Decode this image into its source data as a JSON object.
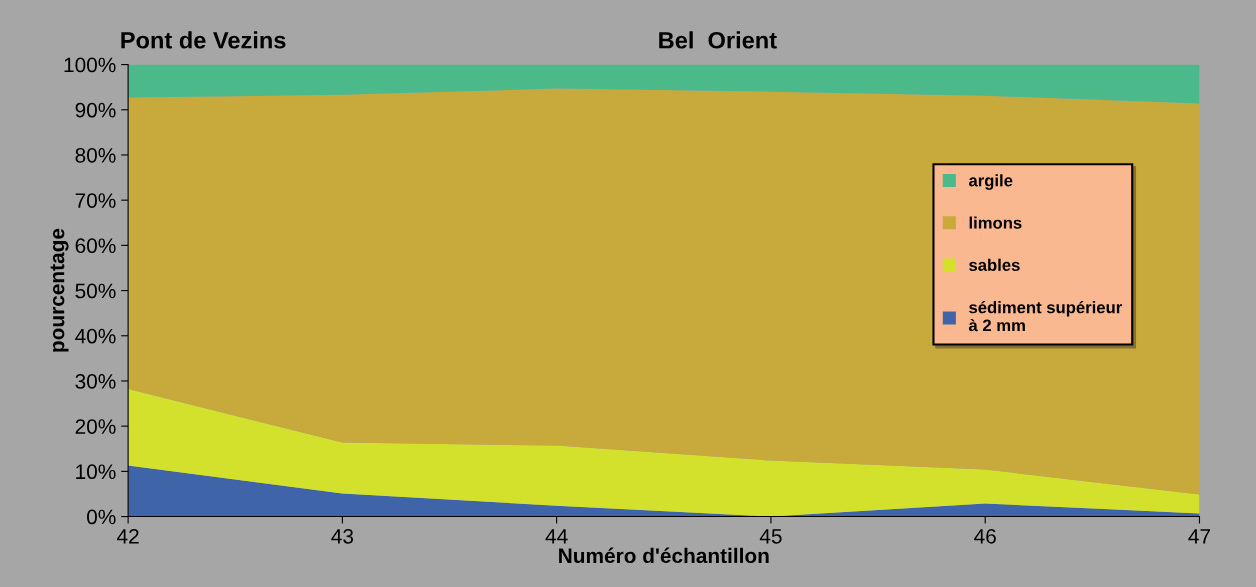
{
  "chart_data": {
    "type": "area",
    "stacked": true,
    "xlabel": "Numéro d'échantillon",
    "ylabel": "pourcentage",
    "annotations": [
      "Pont de Vezins",
      "Bel  Orient"
    ],
    "x": [
      42,
      43,
      44,
      45,
      46,
      47
    ],
    "series": [
      {
        "name": "sédiment supérieur\nà 2 mm",
        "color": "#3f64a8",
        "values": [
          11.3,
          5.1,
          2.4,
          0,
          2.9,
          0.7
        ]
      },
      {
        "name": "sables",
        "color": "#d3e12c",
        "values": [
          16.9,
          11.3,
          13.3,
          12.4,
          7.5,
          4.2
        ]
      },
      {
        "name": "limons",
        "color": "#c8aa3c",
        "values": [
          64.5,
          76.9,
          79.0,
          81.6,
          82.7,
          86.5
        ]
      },
      {
        "name": "argile",
        "color": "#4cb98a",
        "values": [
          7.3,
          6.7,
          5.3,
          6.0,
          6.9,
          8.6
        ]
      }
    ],
    "xlim": [
      42,
      47
    ],
    "xticks": [
      42,
      43,
      44,
      45,
      46,
      47
    ],
    "ylim": [
      0,
      100
    ],
    "yticks": [
      {
        "value": 0,
        "label": "0%"
      },
      {
        "value": 10,
        "label": "10%"
      },
      {
        "value": 20,
        "label": "20%"
      },
      {
        "value": 30,
        "label": "30%"
      },
      {
        "value": 40,
        "label": "40%"
      },
      {
        "value": 50,
        "label": "50%"
      },
      {
        "value": 60,
        "label": "60%"
      },
      {
        "value": 70,
        "label": "70%"
      },
      {
        "value": 80,
        "label": "80%"
      },
      {
        "value": 90,
        "label": "90%"
      },
      {
        "value": 100,
        "label": "100%"
      }
    ],
    "grid": false,
    "legend": "right"
  }
}
